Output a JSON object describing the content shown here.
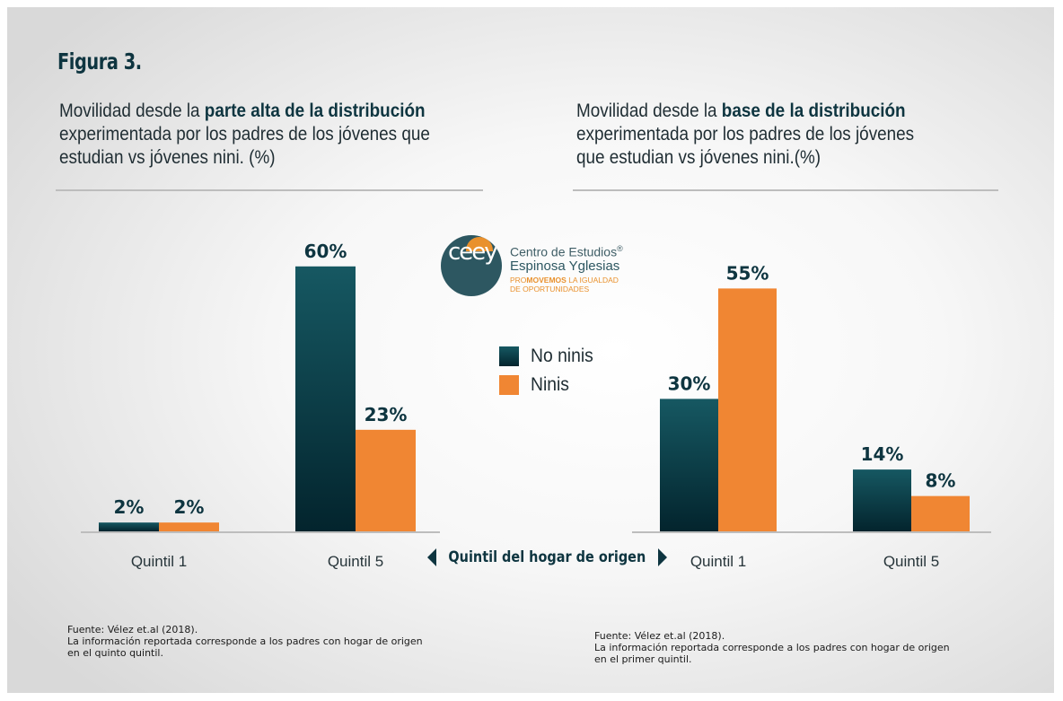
{
  "figure": {
    "title": "Figura 3."
  },
  "left_panel": {
    "subtitle_pre": "Movilidad desde la ",
    "subtitle_bold": "parte alta de la distribución",
    "subtitle_line2": "experimentada por los padres de los jóvenes que",
    "subtitle_line3": "estudian vs jóvenes nini. (%)",
    "source_title": "Fuente: Vélez et.al (2018).",
    "source_line1": "La información reportada corresponde a los padres con hogar de origen",
    "source_line2": "en el quinto quintil."
  },
  "right_panel": {
    "subtitle_pre": "Movilidad desde la ",
    "subtitle_bold": "base de la distribución",
    "subtitle_line2": "experimentada por los padres de los jóvenes",
    "subtitle_line3": "que estudian vs jóvenes nini.(%)",
    "source_title": "Fuente: Vélez et.al (2018).",
    "source_line1": "La información reportada corresponde a los padres con hogar de origen",
    "source_line2": "en el primer quintil."
  },
  "logo": {
    "monogram": "ceey",
    "line1": "Centro de Estudios",
    "registered": "®",
    "line2": "Espinosa Yglesias",
    "tagline_pre": "PRO",
    "tagline_bold": "MOVEMOS",
    "tagline_post": " LA IGUALDAD",
    "tagline_line2": "DE OPORTUNIDADES"
  },
  "legend": {
    "items": [
      {
        "label": "No ninis",
        "color": "#0e3a45"
      },
      {
        "label": "Ninis",
        "color": "#f08633"
      }
    ]
  },
  "axis_note": "Quintil del hogar de origen",
  "colors": {
    "no_ninis_top": "#165862",
    "no_ninis_bottom": "#03242d",
    "ninis": "#f08633",
    "text_dark": "#0e3540",
    "axis": "#bdbdbd"
  },
  "chart_data": [
    {
      "type": "bar",
      "title": "Movilidad desde la parte alta de la distribución experimentada por los padres de los jóvenes que estudian vs jóvenes nini. (%)",
      "xlabel": "Quintil del hogar de origen",
      "ylabel": "",
      "ylim": [
        0,
        60
      ],
      "grid": false,
      "legend": "center",
      "categories": [
        "Quintil 1",
        "Quintil 5"
      ],
      "series": [
        {
          "name": "No ninis",
          "values": [
            2,
            60
          ],
          "labels": [
            "2%",
            "60%"
          ]
        },
        {
          "name": "Ninis",
          "values": [
            2,
            23
          ],
          "labels": [
            "2%",
            "23%"
          ]
        }
      ]
    },
    {
      "type": "bar",
      "title": "Movilidad desde la base de la distribución experimentada por los padres de los jóvenes que estudian vs jóvenes nini.(%)",
      "xlabel": "Quintil del hogar de origen",
      "ylabel": "",
      "ylim": [
        0,
        60
      ],
      "grid": false,
      "legend": "center",
      "categories": [
        "Quintil 1",
        "Quintil 5"
      ],
      "series": [
        {
          "name": "No ninis",
          "values": [
            30,
            14
          ],
          "labels": [
            "30%",
            "14%"
          ]
        },
        {
          "name": "Ninis",
          "values": [
            55,
            8
          ],
          "labels": [
            "55%",
            "8%"
          ]
        }
      ]
    }
  ]
}
